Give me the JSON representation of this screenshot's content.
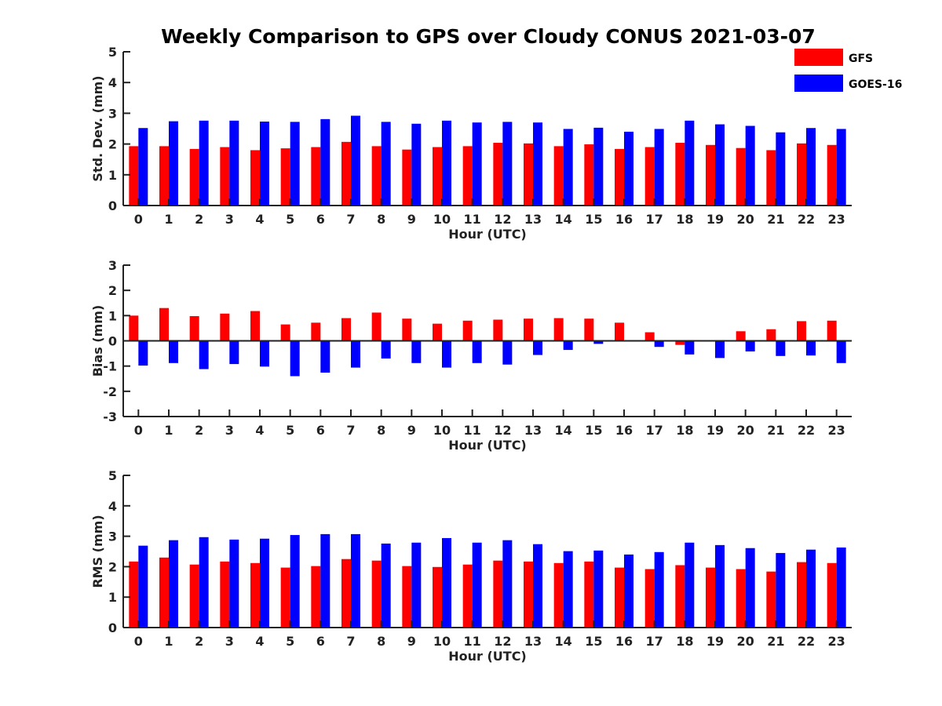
{
  "chart_data": {
    "type": "bar",
    "title": "Weekly Comparison to GPS over Cloudy CONUS 2021-03-07",
    "categories": [
      "0",
      "1",
      "2",
      "3",
      "4",
      "5",
      "6",
      "7",
      "8",
      "9",
      "10",
      "11",
      "12",
      "13",
      "14",
      "15",
      "16",
      "17",
      "18",
      "19",
      "20",
      "21",
      "22",
      "23"
    ],
    "legend": [
      {
        "name": "GFS",
        "color": "#ff0000"
      },
      {
        "name": "GOES-16",
        "color": "#0000ff"
      }
    ],
    "legend_placement": "top-right",
    "grid": false,
    "panels": [
      {
        "ylabel": "Std. Dev. (mm)",
        "xlabel": "Hour (UTC)",
        "ylim": [
          0,
          5
        ],
        "yticks": [
          0,
          1,
          2,
          3,
          4,
          5
        ],
        "series": [
          {
            "name": "GFS",
            "color": "#ff0000",
            "values": [
              1.93,
              1.93,
              1.84,
              1.9,
              1.8,
              1.86,
              1.9,
              2.07,
              1.93,
              1.82,
              1.9,
              1.93,
              2.04,
              2.02,
              1.93,
              1.99,
              1.84,
              1.9,
              2.04,
              1.97,
              1.87,
              1.8,
              2.02,
              1.97
            ]
          },
          {
            "name": "GOES-16",
            "color": "#0000ff",
            "values": [
              2.52,
              2.74,
              2.76,
              2.76,
              2.73,
              2.72,
              2.81,
              2.92,
              2.72,
              2.66,
              2.76,
              2.7,
              2.72,
              2.7,
              2.49,
              2.53,
              2.4,
              2.49,
              2.76,
              2.64,
              2.59,
              2.38,
              2.52,
              2.49
            ]
          }
        ]
      },
      {
        "ylabel": "Bias (mm)",
        "xlabel": "Hour (UTC)",
        "ylim": [
          -3,
          3
        ],
        "yticks": [
          -3,
          -2,
          -1,
          0,
          1,
          2,
          3
        ],
        "series": [
          {
            "name": "GFS",
            "color": "#ff0000",
            "values": [
              1.0,
              1.3,
              0.98,
              1.08,
              1.18,
              0.65,
              0.72,
              0.9,
              1.12,
              0.88,
              0.68,
              0.8,
              0.84,
              0.88,
              0.9,
              0.88,
              0.72,
              0.34,
              -0.16,
              0.0,
              0.38,
              0.46,
              0.78,
              0.8
            ]
          },
          {
            "name": "GOES-16",
            "color": "#0000ff",
            "values": [
              -0.98,
              -0.88,
              -1.12,
              -0.92,
              -1.02,
              -1.4,
              -1.26,
              -1.06,
              -0.7,
              -0.88,
              -1.06,
              -0.88,
              -0.94,
              -0.56,
              -0.36,
              -0.12,
              0.03,
              -0.24,
              -0.54,
              -0.68,
              -0.42,
              -0.6,
              -0.58,
              -0.88
            ]
          }
        ]
      },
      {
        "ylabel": "RMS (mm)",
        "xlabel": "Hour (UTC)",
        "ylim": [
          0,
          5
        ],
        "yticks": [
          0,
          1,
          2,
          3,
          4,
          5
        ],
        "series": [
          {
            "name": "GFS",
            "color": "#ff0000",
            "values": [
              2.17,
              2.3,
              2.07,
              2.17,
              2.12,
              1.97,
              2.02,
              2.25,
              2.2,
              2.02,
              1.99,
              2.07,
              2.2,
              2.17,
              2.12,
              2.17,
              1.97,
              1.92,
              2.05,
              1.97,
              1.92,
              1.84,
              2.15,
              2.12
            ]
          },
          {
            "name": "GOES-16",
            "color": "#0000ff",
            "values": [
              2.69,
              2.87,
              2.97,
              2.89,
              2.92,
              3.04,
              3.07,
              3.07,
              2.76,
              2.79,
              2.94,
              2.79,
              2.87,
              2.74,
              2.51,
              2.53,
              2.4,
              2.48,
              2.79,
              2.71,
              2.61,
              2.45,
              2.56,
              2.63
            ]
          }
        ]
      }
    ]
  }
}
